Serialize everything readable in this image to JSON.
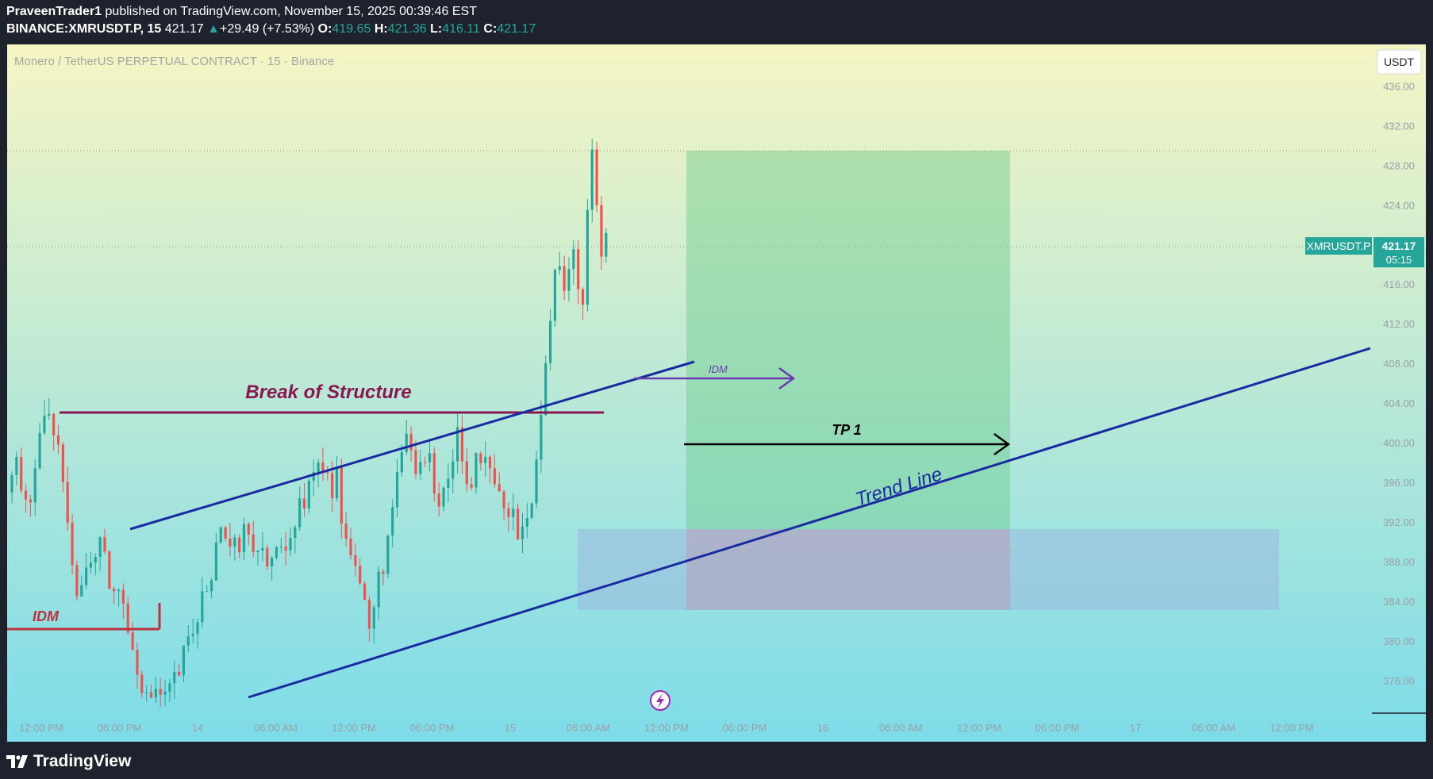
{
  "header": {
    "publisher": "PraveenTrader1",
    "published_text": "published on TradingView.com, November 15, 2025 00:39:46 EST",
    "symbol": "BINANCE:XMRUSDT.P, 15",
    "last": "421.17",
    "change_arrow": "▲",
    "change": "+29.49 (+7.53%)",
    "o_label": "O:",
    "o": "419.65",
    "h_label": "H:",
    "h": "421.36",
    "l_label": "L:",
    "l": "416.11",
    "c_label": "C:",
    "c": "421.17"
  },
  "chart_title": "Monero / TetherUS PERPETUAL CONTRACT · 15 · Binance",
  "currency_button": "USDT",
  "price_tag": {
    "symbol": "XMRUSDT.P",
    "price": "421.17",
    "countdown": "05:15"
  },
  "footer": {
    "brand": "TradingView"
  },
  "colors": {
    "bg_top": "#f6f5c4",
    "bg_bottom": "#7ddce9",
    "up": "#26a69a",
    "down": "#ef5350",
    "trend": "#1a2aa0",
    "bos": "#8a1750",
    "idm_red": "#c0313e",
    "idm_purple": "#6a3ab0",
    "tp_zone": "#8fd8a8",
    "sl_zone": "#a9a6c4",
    "demand_zone": "#9ab8e0"
  },
  "annotations": {
    "bos": "Break of Structure",
    "idm_left": "IDM",
    "idm_right": "IDM",
    "tp1": "TP 1",
    "trend_line": "Trend Line"
  },
  "chart_data": {
    "type": "candlestick",
    "title": "Monero / TetherUS PERPETUAL CONTRACT · 15 · Binance",
    "y_ticks": [
      376,
      380,
      384,
      388,
      392,
      396,
      400,
      404,
      408,
      412,
      416,
      420,
      424,
      428,
      432,
      436
    ],
    "y_tick_labels": [
      "376.00",
      "380.00",
      "384.00",
      "388.00",
      "392.00",
      "396.00",
      "400.00",
      "404.00",
      "408.00",
      "412.00",
      "416.00",
      "420.00",
      "424.00",
      "428.00",
      "432.00",
      "436.00"
    ],
    "ylim": [
      372.7,
      440.2
    ],
    "x_ticks": [
      "12:00 PM",
      "06:00 PM",
      "14",
      "06:00 AM",
      "12:00 PM",
      "06:00 PM",
      "15",
      "06:00 AM",
      "12:00 PM",
      "06:00 PM",
      "16",
      "06:00 AM",
      "12:00 PM",
      "06:00 PM",
      "17",
      "06:00 AM",
      "12:00 PM"
    ],
    "last_price": 421.17,
    "high_line": 431.0,
    "series_path": [
      [
        0,
        395
      ],
      [
        2,
        398
      ],
      [
        5,
        393
      ],
      [
        8,
        403
      ],
      [
        10,
        401
      ],
      [
        12,
        397
      ],
      [
        15,
        385
      ],
      [
        17,
        387
      ],
      [
        20,
        390
      ],
      [
        22,
        386
      ],
      [
        25,
        384
      ],
      [
        26,
        382
      ],
      [
        28,
        378
      ],
      [
        30,
        374
      ],
      [
        32,
        375
      ],
      [
        34,
        374
      ],
      [
        37,
        377
      ],
      [
        40,
        381
      ],
      [
        43,
        386
      ],
      [
        46,
        390
      ],
      [
        49,
        389
      ],
      [
        52,
        391
      ],
      [
        55,
        389
      ],
      [
        57,
        387
      ],
      [
        59,
        390
      ],
      [
        62,
        392
      ],
      [
        65,
        396
      ],
      [
        68,
        398
      ],
      [
        70,
        395
      ],
      [
        71,
        397
      ],
      [
        72,
        393
      ],
      [
        74,
        390
      ],
      [
        76,
        386
      ],
      [
        78,
        381
      ],
      [
        80,
        386
      ],
      [
        83,
        393
      ],
      [
        86,
        401
      ],
      [
        88,
        397
      ],
      [
        90,
        399
      ],
      [
        93,
        395
      ],
      [
        95,
        397
      ],
      [
        97,
        400
      ],
      [
        99,
        396
      ],
      [
        102,
        398
      ],
      [
        105,
        395
      ],
      [
        107,
        393
      ],
      [
        109,
        392
      ],
      [
        111,
        390
      ],
      [
        113,
        395
      ],
      [
        115,
        402
      ],
      [
        116,
        408
      ],
      [
        118,
        419
      ],
      [
        120,
        416
      ],
      [
        122,
        419
      ],
      [
        124,
        414
      ],
      [
        125,
        422
      ],
      [
        126,
        431
      ],
      [
        127,
        425
      ],
      [
        128,
        418
      ],
      [
        129,
        421.17
      ]
    ],
    "trend_line": {
      "label": "Trend Line",
      "from": [
        31,
        373.5
      ],
      "to": [
        237,
        410.7
      ]
    },
    "channel_line": {
      "from": [
        16,
        392.1
      ],
      "to": [
        88,
        409.1
      ]
    },
    "break_of_structure": {
      "label": "Break of Structure",
      "level": 404.3
    },
    "idm_left": {
      "label": "IDM",
      "level": 382.2
    },
    "idm_right": {
      "label": "IDM",
      "level": 407.8
    },
    "tp1": {
      "label": "TP 1",
      "level": 401.0
    },
    "position": {
      "entry": 392.1,
      "target": 431.0,
      "stop": 383.6
    },
    "demand_zone": {
      "top": 392.1,
      "bottom": 383.6
    }
  }
}
